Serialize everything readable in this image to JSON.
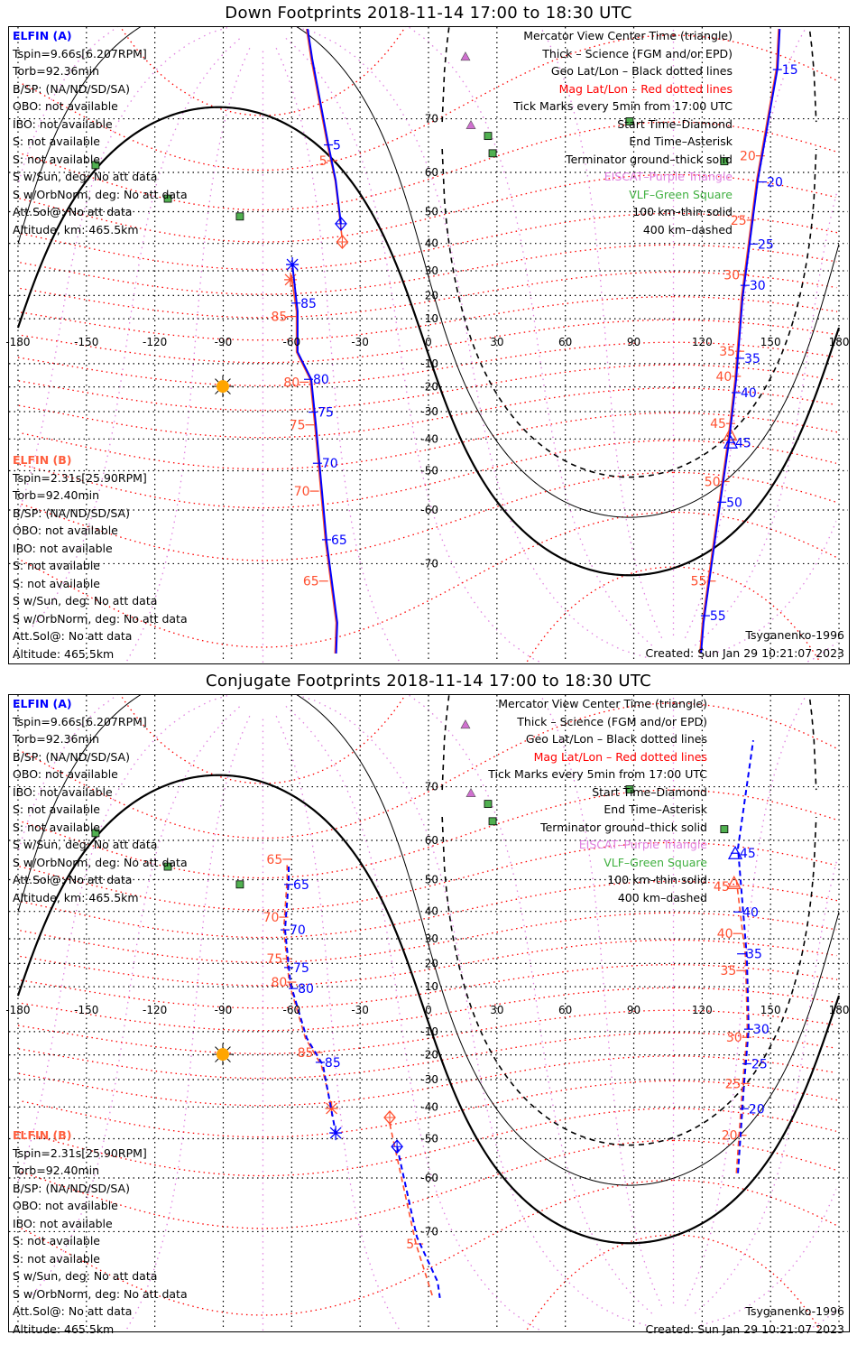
{
  "elfin_a": {
    "name": "ELFIN (A)",
    "lines": [
      "Tspin=9.66s[6.207RPM]",
      "Torb=92.36min",
      "B/SP: (NA/ND/SD/SA)",
      "OBO: not available",
      "IBO: not available",
      "S: not available",
      "S: not available",
      "S w/Sun, deg: No att data",
      "S w/OrbNorm, deg: No att data",
      "Att.Sol@: No att data",
      "Altitude, km: 465.5km"
    ]
  },
  "elfin_b": {
    "name": "ELFIN (B)",
    "lines": [
      "Tspin=2.31s[25.90RPM]",
      "Torb=92.40min",
      "B/SP: (NA/ND/SD/SA)",
      "OBO: not available",
      "IBO: not available",
      "S: not available",
      "S: not available",
      "S w/Sun, deg: No att data",
      "S w/OrbNorm, deg: No att data",
      "Att.Sol@: No att data",
      "Altitude: 465.5km"
    ]
  },
  "legend": [
    {
      "text": "Mercator View Center Time (triangle)",
      "color": "black"
    },
    {
      "text": "Thick – Science (FGM and/or EPD)",
      "color": "black"
    },
    {
      "text": "Geo Lat/Lon – Black dotted lines",
      "color": "black"
    },
    {
      "text": "Mag Lat/Lon – Red dotted lines",
      "color": "red"
    },
    {
      "text": "Tick Marks every 5min from 17:00 UTC",
      "color": "black"
    },
    {
      "text": "Start Time–Diamond",
      "color": "black"
    },
    {
      "text": "End Time–Asterisk",
      "color": "black"
    },
    {
      "text": "Terminator ground–thick solid",
      "color": "black"
    },
    {
      "text": "EISCAT–Purple Triangle",
      "color": "violet"
    },
    {
      "text": "VLF–Green Square",
      "color": "green"
    },
    {
      "text": "100 km–thin solid",
      "color": "black"
    },
    {
      "text": "400 km–dashed",
      "color": "black"
    }
  ],
  "model": "Tsyganenko-1996",
  "created": "Created: Sun Jan 29 10:21:07 2023",
  "colors": {
    "elfin_a": "#0000ff",
    "elfin_b": "#ff5030",
    "mag_lat": "#ff0000",
    "mag_lon": "#e080e0",
    "vlf": "#50b050",
    "eiscat": "#d070d0",
    "sun": "#ffa500"
  },
  "chart_data": [
    {
      "type": "map",
      "projection": "mercator",
      "title": "Down Footprints 2018-11-14 17:00 to 18:30 UTC",
      "xlim": [
        -180,
        180
      ],
      "ylim": [
        -80,
        80
      ],
      "lon_ticks": [
        -180,
        -150,
        -120,
        -90,
        -60,
        -30,
        0,
        30,
        60,
        90,
        120,
        150,
        180
      ],
      "lat_ticks": [
        -70,
        -60,
        -50,
        -40,
        -30,
        -20,
        -10,
        10,
        20,
        30,
        40,
        50,
        60,
        70
      ],
      "line_style": "solid",
      "tracks": {
        "a": [
          [
            [
              -38.4,
              46.4
            ],
            [
              -40.7,
              58.2
            ],
            [
              -43.9,
              65.6
            ],
            [
              -51,
              77.4
            ],
            [
              -53,
              80
            ]
          ],
          [
            [
              154,
              80
            ],
            [
              153.1,
              76.5
            ],
            [
              144.4,
              58.2
            ],
            [
              137.7,
              19.0
            ],
            [
              134.9,
              -16.8
            ],
            [
              131.7,
              -41.2
            ],
            [
              126.6,
              -62.9
            ],
            [
              120.6,
              -77.3
            ],
            [
              119.5,
              -80
            ]
          ],
          [
            [
              -40.5,
              -80
            ],
            [
              -40,
              -77.3
            ],
            [
              -44.7,
              -66.3
            ],
            [
              -49.4,
              -34.8
            ],
            [
              -51.4,
              -16.8
            ],
            [
              -57.4,
              -4.8
            ],
            [
              -57.4,
              13.2
            ],
            [
              -59.7,
              32.4
            ]
          ]
        ],
        "b": [
          [
            [
              -38.0,
              42.5
            ],
            [
              -40.9,
              58.0
            ],
            [
              -44.3,
              65.5
            ],
            [
              -51.5,
              77.4
            ],
            [
              -53.5,
              80
            ]
          ],
          [
            [
              153.5,
              80
            ],
            [
              152.6,
              76.5
            ],
            [
              143.9,
              58.2
            ],
            [
              137.2,
              19.0
            ],
            [
              134.4,
              -16.8
            ],
            [
              131.2,
              -41.2
            ],
            [
              126.1,
              -62.9
            ],
            [
              120.1,
              -77.3
            ],
            [
              119,
              -80
            ]
          ],
          [
            [
              -41,
              -80
            ],
            [
              -40.5,
              -77.3
            ],
            [
              -45.2,
              -66.3
            ],
            [
              -49.9,
              -34.8
            ],
            [
              -51.9,
              -16.8
            ],
            [
              -57.9,
              -4.8
            ],
            [
              -57.9,
              13.2
            ],
            [
              -60.2,
              28.5
            ]
          ]
        ]
      },
      "ticks_a": [
        {
          "label": "5",
          "lon": -43.9,
          "lat": 65.6
        },
        {
          "label": "15",
          "lon": 153,
          "lat": 76.3
        },
        {
          "label": "20",
          "lon": 146.4,
          "lat": 57.8
        },
        {
          "label": "25",
          "lon": 142.4,
          "lat": 39.8
        },
        {
          "label": "30",
          "lon": 138.8,
          "lat": 24.2
        },
        {
          "label": "35",
          "lon": 136.5,
          "lat": -7.6
        },
        {
          "label": "40",
          "lon": 134.9,
          "lat": -22.4
        },
        {
          "label": "45",
          "lon": 132.5,
          "lat": -41.2
        },
        {
          "label": "50",
          "lon": 128.6,
          "lat": -58.2
        },
        {
          "label": "55",
          "lon": 121.4,
          "lat": -76.6
        },
        {
          "label": "65",
          "lon": -44.7,
          "lat": -66
        },
        {
          "label": "70",
          "lon": -48.7,
          "lat": -47.8
        },
        {
          "label": "75",
          "lon": -50.6,
          "lat": -30.2
        },
        {
          "label": "80",
          "lon": -52.6,
          "lat": -16.8
        },
        {
          "label": "85",
          "lon": -58.1,
          "lat": 16.8
        }
      ],
      "ticks_b": [
        {
          "label": "5",
          "lon": -42.5,
          "lat": 62.5
        },
        {
          "label": "20",
          "lon": 145.5,
          "lat": 63.5
        },
        {
          "label": "25",
          "lon": 141.5,
          "lat": 47.5
        },
        {
          "label": "30",
          "lon": 138.5,
          "lat": 28.5
        },
        {
          "label": "35",
          "lon": 136.5,
          "lat": -4.5
        },
        {
          "label": "40",
          "lon": 135,
          "lat": -15.5
        },
        {
          "label": "45",
          "lon": 132.5,
          "lat": -34.5
        },
        {
          "label": "50",
          "lon": 130,
          "lat": -53
        },
        {
          "label": "55",
          "lon": 124,
          "lat": -72.5
        },
        {
          "label": "65",
          "lon": -46,
          "lat": -72.5
        },
        {
          "label": "70",
          "lon": -50,
          "lat": -55.5
        },
        {
          "label": "75",
          "lon": -52,
          "lat": -35
        },
        {
          "label": "80",
          "lon": -54.5,
          "lat": -18
        },
        {
          "label": "85",
          "lon": -60,
          "lat": 11
        }
      ],
      "start_a": [
        -38.4,
        46.4
      ],
      "start_b": [
        -37.8,
        40.5
      ],
      "end_a": [
        -59.7,
        32.4
      ],
      "end_b": [
        -60.5,
        26.5
      ],
      "center_a": [
        132.5,
        -41.2
      ],
      "center_b": [
        132.3,
        -38.5
      ]
    },
    {
      "type": "map",
      "projection": "mercator",
      "title": "Conjugate Footprints 2018-11-14 17:00 to 18:30 UTC",
      "xlim": [
        -180,
        180
      ],
      "ylim": [
        -80,
        80
      ],
      "lon_ticks": [
        -180,
        -150,
        -120,
        -90,
        -60,
        -30,
        0,
        30,
        60,
        90,
        120,
        150,
        180
      ],
      "lat_ticks": [
        -70,
        -60,
        -50,
        -40,
        -30,
        -20,
        -10,
        10,
        20,
        30,
        40,
        50,
        60,
        70
      ],
      "line_style": "dashed",
      "tracks": {
        "a": [
          [
            [
              -13.8,
              -52.2
            ],
            [
              -5.1,
              -70.8
            ],
            [
              4,
              -76.4
            ],
            [
              5,
              -78
            ]
          ],
          [
            [
              135.7,
              -58.9
            ],
            [
              138.4,
              -31.4
            ],
            [
              140.4,
              -8.9
            ],
            [
              139.6,
              22.8
            ],
            [
              135.7,
              58.2
            ],
            [
              142.4,
              76.0
            ]
          ],
          [
            [
              -61.3,
              53.6
            ],
            [
              -61.3,
              49.9
            ],
            [
              -62.9,
              33.4
            ],
            [
              -60.5,
              11.2
            ],
            [
              -53.4,
              -12.8
            ],
            [
              -46.3,
              -24.2
            ],
            [
              -40.7,
              -48.3
            ]
          ]
        ],
        "b": [
          [
            [
              -17,
              -45.5
            ],
            [
              -5.5,
              -71.8
            ],
            [
              2,
              -78
            ]
          ],
          [
            [
              135,
              -58.9
            ],
            [
              137.8,
              -31.4
            ],
            [
              139.8,
              -8.9
            ],
            [
              139,
              22.8
            ],
            [
              135,
              50
            ]
          ],
          [
            [
              -62,
              54
            ],
            [
              -62,
              49.9
            ],
            [
              -63.5,
              33.4
            ],
            [
              -61,
              11.2
            ],
            [
              -54,
              -12.8
            ],
            [
              -47,
              -24.2
            ],
            [
              -42.5,
              -40
            ]
          ]
        ]
      },
      "ticks_a": [
        {
          "label": "65",
          "lon": -61.3,
          "lat": 48.6
        },
        {
          "label": "70",
          "lon": -62.9,
          "lat": 33.4
        },
        {
          "label": "75",
          "lon": -61.3,
          "lat": 18.3
        },
        {
          "label": "80",
          "lon": -59.3,
          "lat": 9.2
        },
        {
          "label": "85",
          "lon": -47.5,
          "lat": -23.1
        },
        {
          "label": "20",
          "lon": 138.4,
          "lat": -40.6
        },
        {
          "label": "25",
          "lon": 139.6,
          "lat": -23.7
        },
        {
          "label": "30",
          "lon": 140.4,
          "lat": -8.9
        },
        {
          "label": "35",
          "lon": 137.3,
          "lat": 24
        },
        {
          "label": "40",
          "lon": 135.7,
          "lat": 39.8
        },
        {
          "label": "45",
          "lon": 134.5,
          "lat": 57
        }
      ],
      "ticks_b": [
        {
          "label": "5",
          "lon": -4.3,
          "lat": -71.8
        },
        {
          "label": "65",
          "lon": -62,
          "lat": 55.5
        },
        {
          "label": "70",
          "lon": -63.5,
          "lat": 38
        },
        {
          "label": "75",
          "lon": -62,
          "lat": 22
        },
        {
          "label": "80",
          "lon": -60,
          "lat": 12
        },
        {
          "label": "85",
          "lon": -48.5,
          "lat": -19
        },
        {
          "label": "20",
          "lon": 137.5,
          "lat": -49
        },
        {
          "label": "25",
          "lon": 139,
          "lat": -31.5
        },
        {
          "label": "30",
          "lon": 139.5,
          "lat": -12.5
        },
        {
          "label": "35",
          "lon": 137,
          "lat": 17
        },
        {
          "label": "40",
          "lon": 135.5,
          "lat": 32
        },
        {
          "label": "45",
          "lon": 134,
          "lat": 48
        }
      ],
      "start_a": [
        -13.8,
        -52.2
      ],
      "start_b": [
        -17,
        -43.5
      ],
      "end_a": [
        -40.7,
        -48.3
      ],
      "end_b": [
        -42.5,
        -40.5
      ],
      "center_a": [
        134.5,
        57
      ],
      "center_b": [
        134,
        49
      ]
    }
  ],
  "stations": {
    "vlf": [
      [
        -146,
        61.6
      ],
      [
        -114.3,
        53.6
      ],
      [
        -82.7,
        48.6
      ],
      [
        26.1,
        67.2
      ],
      [
        28.1,
        64
      ],
      [
        88.2,
        69.6
      ],
      [
        129.7,
        62.4
      ]
    ],
    "eiscat": [
      [
        16.2,
        77.6
      ],
      [
        18.6,
        69
      ]
    ]
  },
  "sun": [
    -90.2,
    -19.8
  ],
  "terminator": {
    "subsolar_lon": -92,
    "declination": -18.3,
    "altitudes_km": [
      0,
      100,
      400
    ]
  }
}
